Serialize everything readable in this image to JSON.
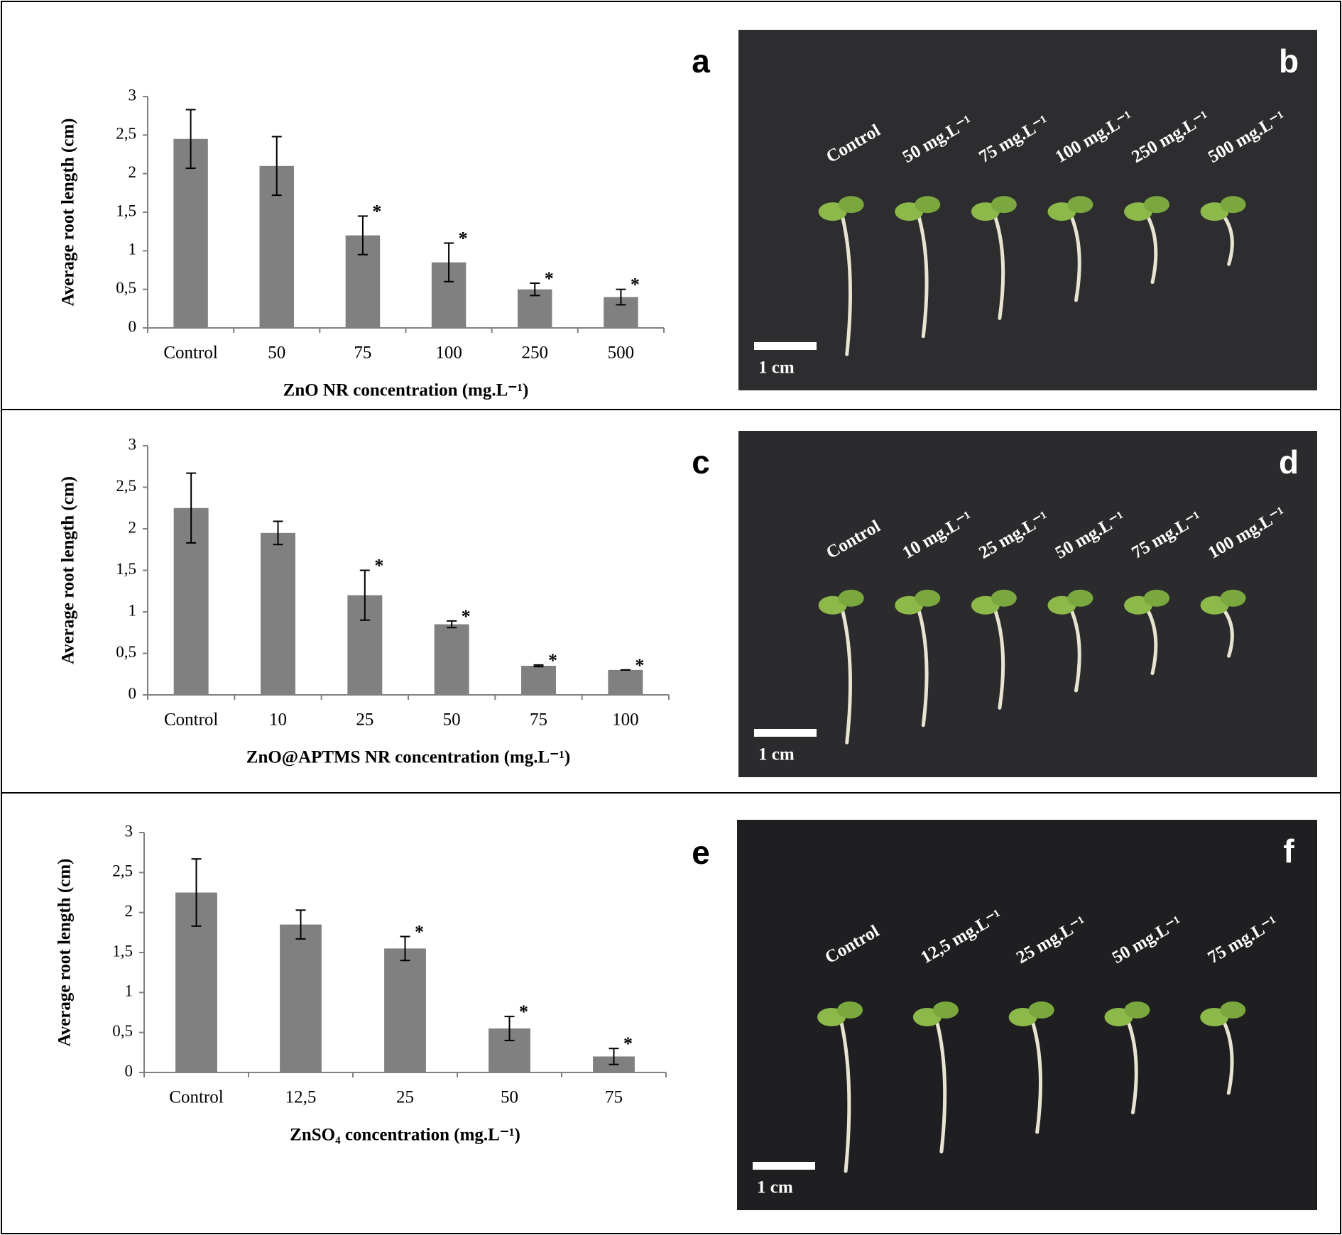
{
  "chart_data": [
    {
      "type": "bar",
      "panel_label": "a",
      "ylabel": "Average root length (cm)",
      "xlabel": "ZnO NR concentration (mg.L⁻¹)",
      "categories": [
        "Control",
        "50",
        "75",
        "100",
        "250",
        "500"
      ],
      "values": [
        2.45,
        2.1,
        1.2,
        0.85,
        0.5,
        0.4
      ],
      "errors": [
        0.38,
        0.38,
        0.25,
        0.25,
        0.08,
        0.1
      ],
      "significant": [
        false,
        false,
        true,
        true,
        true,
        true
      ],
      "marker": "*",
      "color": "#808080",
      "ylim": [
        0,
        3
      ],
      "yticks": [
        0,
        {
          "value": 0.5,
          "label": "0,5"
        },
        1,
        {
          "value": 1.5,
          "label": "1,5"
        },
        2,
        {
          "value": 2.5,
          "label": "2,5"
        },
        3
      ]
    },
    {
      "type": "bar",
      "panel_label": "c",
      "ylabel": "Average root length (cm)",
      "xlabel": "ZnO@APTMS NR concentration (mg.L⁻¹)",
      "categories": [
        "Control",
        "10",
        "25",
        "50",
        "75",
        "100"
      ],
      "values": [
        2.25,
        1.95,
        1.2,
        0.85,
        0.35,
        0.3
      ],
      "errors": [
        0.42,
        0.14,
        0.3,
        0.04,
        0.01,
        0
      ],
      "significant": [
        false,
        false,
        true,
        true,
        true,
        true
      ],
      "marker": "*",
      "color": "#808080",
      "ylim": [
        0,
        3
      ],
      "yticks": [
        0,
        {
          "value": 0.5,
          "label": "0,5"
        },
        1,
        {
          "value": 1.5,
          "label": "1,5"
        },
        2,
        {
          "value": 2.5,
          "label": "2,5"
        },
        3
      ]
    },
    {
      "type": "bar",
      "panel_label": "e",
      "ylabel": "Average root length (cm)",
      "xlabel": "ZnSO₄ concentration (mg.L⁻¹)",
      "categories": [
        "Control",
        "12,5",
        "25",
        "50",
        "75"
      ],
      "values": [
        2.25,
        1.85,
        1.55,
        0.55,
        0.2
      ],
      "errors": [
        0.42,
        0.18,
        0.15,
        0.15,
        0.1
      ],
      "significant": [
        false,
        false,
        true,
        true,
        true
      ],
      "marker": "*",
      "color": "#808080",
      "ylim": [
        0,
        3
      ],
      "yticks": [
        0,
        {
          "value": 0.5,
          "label": "0,5"
        },
        1,
        {
          "value": 1.5,
          "label": "1,5"
        },
        2,
        {
          "value": 2.5,
          "label": "2,5"
        },
        3
      ]
    }
  ],
  "photos": [
    {
      "panel_label": "b",
      "labels": [
        "Control",
        "50 mg.L⁻¹",
        "75 mg.L⁻¹",
        "100 mg.L⁻¹",
        "250 mg.L⁻¹",
        "500 mg.L⁻¹"
      ],
      "scale_label": "1 cm"
    },
    {
      "panel_label": "d",
      "labels": [
        "Control",
        "10 mg.L⁻¹",
        "25 mg.L⁻¹",
        "50 mg.L⁻¹",
        "75 mg.L⁻¹",
        "100 mg.L⁻¹"
      ],
      "scale_label": "1 cm"
    },
    {
      "panel_label": "f",
      "labels": [
        "Control",
        "12,5 mg.L⁻¹",
        "25 mg.L⁻¹",
        "50 mg.L⁻¹",
        "75 mg.L⁻¹"
      ],
      "scale_label": "1 cm"
    }
  ]
}
